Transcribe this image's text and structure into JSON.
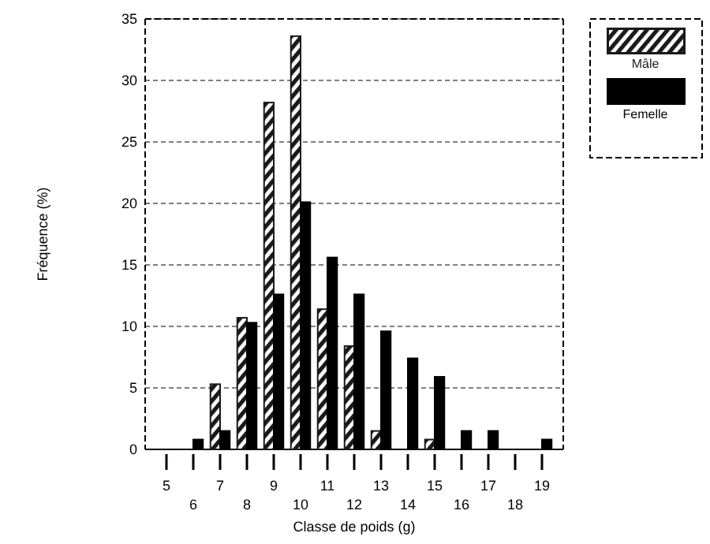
{
  "chart_data": {
    "type": "bar",
    "xlabel": "Classe de poids (g)",
    "ylabel": "Fréquence (%)",
    "categories": [
      "5",
      "6",
      "7",
      "8",
      "9",
      "10",
      "11",
      "12",
      "13",
      "14",
      "15",
      "16",
      "17",
      "18",
      "19"
    ],
    "series": [
      {
        "name": "Mâle",
        "color": "#1a1a1a",
        "values": [
          0,
          0,
          5.3,
          10.7,
          28.2,
          33.6,
          11.4,
          8.4,
          1.5,
          0,
          0.8,
          0,
          0,
          0,
          0
        ]
      },
      {
        "name": "Femelle",
        "color": "#000000",
        "values": [
          0,
          0.8,
          1.5,
          10.3,
          12.6,
          20.1,
          15.6,
          12.6,
          9.6,
          7.4,
          5.9,
          1.5,
          1.5,
          0,
          0.8
        ]
      }
    ],
    "ylim": [
      0,
      35
    ],
    "yticks": [
      0,
      5,
      10,
      15,
      20,
      25,
      30,
      35
    ],
    "grid": "y",
    "legend": "top right"
  }
}
